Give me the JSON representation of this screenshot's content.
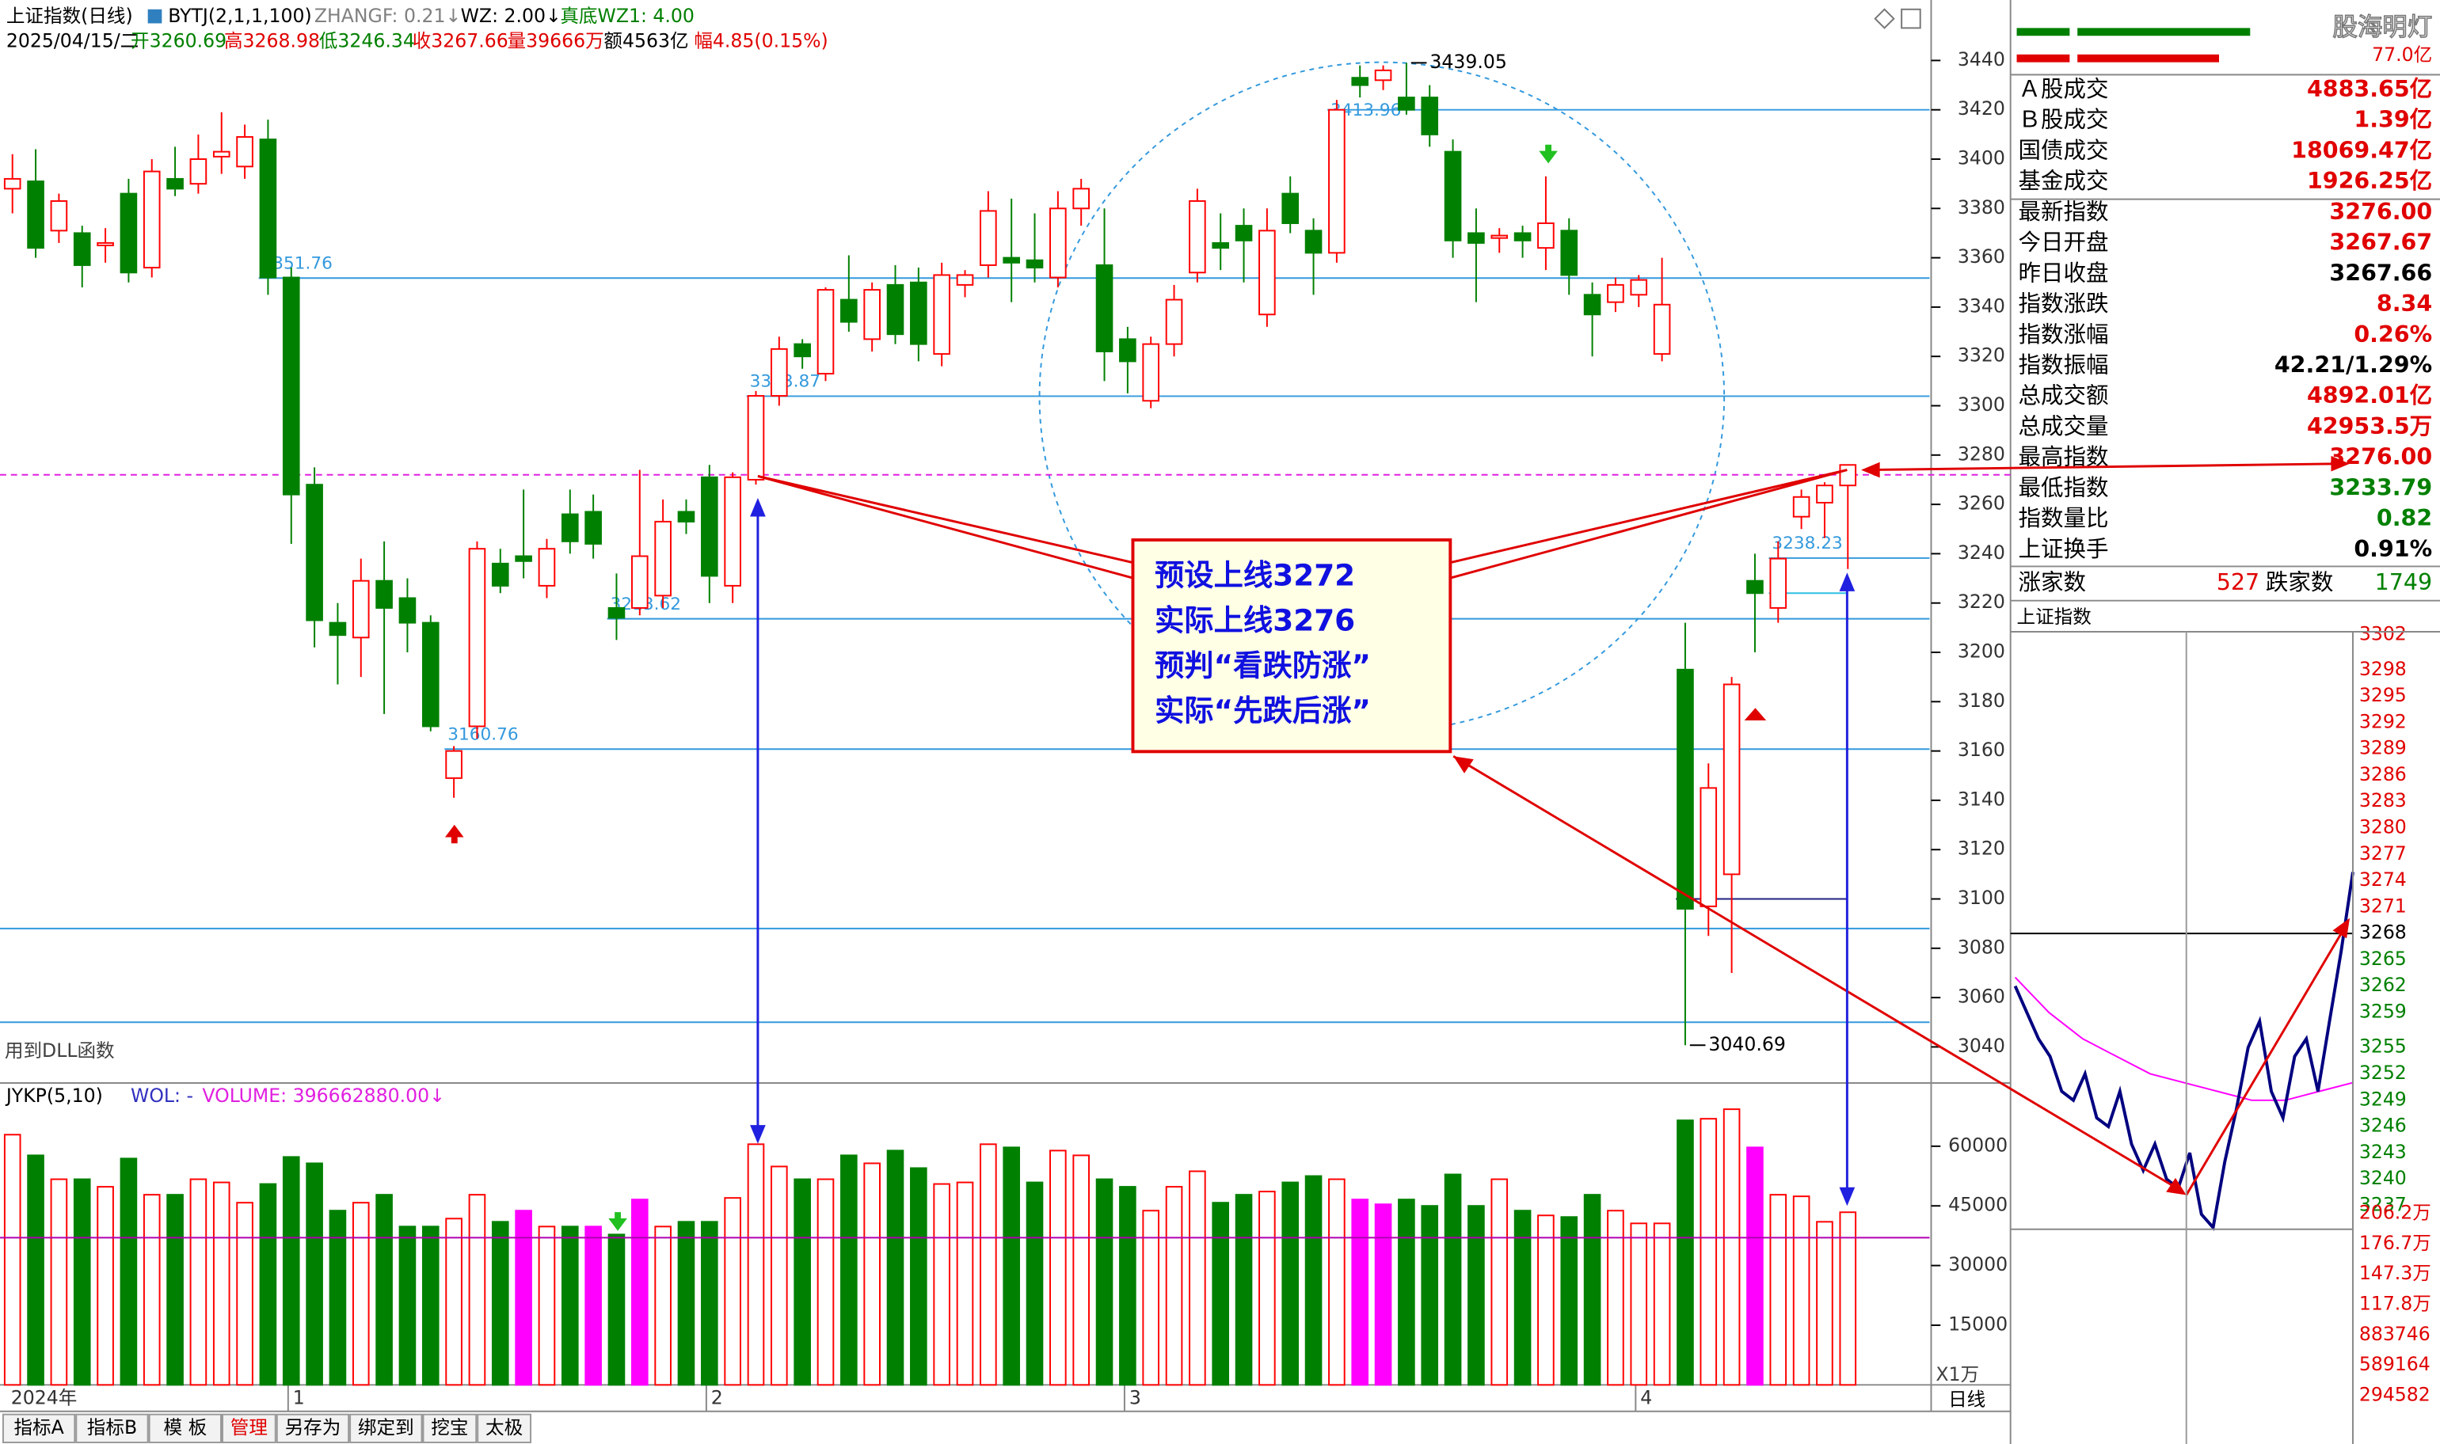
{
  "header": {
    "title": "上证指数(日线)",
    "indicator": "BYTJ(2,1,1,100)",
    "zhangf": "ZHANGF: 0.21↓",
    "wz": "WZ: 2.00↓",
    "wz1": "真底WZ1: 4.00",
    "date": "2025/04/15/二",
    "open": "开3260.69",
    "high": "高3268.98",
    "low": "低3246.34",
    "close": "收3267.66",
    "volume": "量39666万",
    "amount": "额4563亿",
    "range": "幅4.85(0.15%)",
    "note": "用到DLL函数"
  },
  "annotation": [
    "预设上线3272",
    "实际上线3276",
    "预判“看跌防涨”",
    "实际“先跌后涨”"
  ],
  "chart_data": [
    {
      "type": "candlestick",
      "up_color": "#ff0000",
      "down_color": "#008000",
      "ylim": [
        3026,
        3462
      ],
      "yticks": [
        3040,
        3060,
        3080,
        3100,
        3120,
        3140,
        3160,
        3180,
        3200,
        3220,
        3240,
        3260,
        3280,
        3300,
        3320,
        3340,
        3360,
        3380,
        3400,
        3420,
        3440
      ],
      "categories": [
        "2024年",
        null,
        null,
        null,
        null,
        null,
        null,
        null,
        null,
        null,
        null,
        null,
        "1",
        null,
        null,
        null,
        null,
        null,
        null,
        null,
        null,
        null,
        null,
        null,
        null,
        null,
        null,
        null,
        null,
        null,
        "2",
        null,
        null,
        null,
        null,
        null,
        null,
        null,
        null,
        null,
        null,
        null,
        null,
        null,
        null,
        null,
        null,
        null,
        "3",
        null,
        null,
        null,
        null,
        null,
        null,
        null,
        null,
        null,
        null,
        null,
        null,
        null,
        null,
        null,
        null,
        null,
        null,
        null,
        null,
        null,
        "4",
        null,
        null,
        null,
        null,
        null,
        null,
        null,
        null,
        null
      ],
      "values": [
        [
          3388,
          3402,
          3378,
          3392
        ],
        [
          3391,
          3404,
          3360,
          3364
        ],
        [
          3371,
          3386,
          3366,
          3383
        ],
        [
          3370,
          3373,
          3348,
          3357
        ],
        [
          3365,
          3372,
          3358,
          3366
        ],
        [
          3386,
          3392,
          3350,
          3354
        ],
        [
          3356,
          3400,
          3352,
          3395
        ],
        [
          3392,
          3405,
          3385,
          3388
        ],
        [
          3390,
          3410,
          3386,
          3400
        ],
        [
          3401,
          3419,
          3394,
          3403
        ],
        [
          3397,
          3414,
          3392,
          3409
        ],
        [
          3408,
          3416,
          3345,
          3352
        ],
        [
          3352,
          3356,
          3244,
          3264
        ],
        [
          3268,
          3275,
          3202,
          3213
        ],
        [
          3212,
          3220,
          3187,
          3207
        ],
        [
          3206,
          3238,
          3190,
          3229
        ],
        [
          3229,
          3245,
          3175,
          3218
        ],
        [
          3222,
          3230,
          3200,
          3212
        ],
        [
          3212,
          3215,
          3168,
          3170
        ],
        [
          3149,
          3162,
          3141,
          3160
        ],
        [
          3170,
          3245,
          3165,
          3242
        ],
        [
          3236,
          3242,
          3224,
          3227
        ],
        [
          3239,
          3266,
          3230,
          3237
        ],
        [
          3227,
          3246,
          3222,
          3242
        ],
        [
          3256,
          3266,
          3240,
          3245
        ],
        [
          3257,
          3264,
          3238,
          3244
        ],
        [
          3218,
          3232,
          3205,
          3214
        ],
        [
          3218,
          3274,
          3215,
          3239
        ],
        [
          3223,
          3262,
          3218,
          3253
        ],
        [
          3257,
          3262,
          3248,
          3253
        ],
        [
          3271,
          3276,
          3220,
          3231
        ],
        [
          3227,
          3273,
          3220,
          3271
        ],
        [
          3270,
          3306,
          3268,
          3304
        ],
        [
          3304,
          3328,
          3300,
          3323
        ],
        [
          3325,
          3327,
          3315,
          3320
        ],
        [
          3313,
          3348,
          3310,
          3347
        ],
        [
          3343,
          3361,
          3330,
          3334
        ],
        [
          3327,
          3350,
          3322,
          3347
        ],
        [
          3349,
          3357,
          3325,
          3329
        ],
        [
          3350,
          3356,
          3318,
          3325
        ],
        [
          3321,
          3358,
          3316,
          3353
        ],
        [
          3349,
          3355,
          3344,
          3353
        ],
        [
          3357,
          3387,
          3352,
          3379
        ],
        [
          3360,
          3384,
          3342,
          3358
        ],
        [
          3359,
          3378,
          3350,
          3356
        ],
        [
          3352,
          3387,
          3348,
          3380
        ],
        [
          3380,
          3392,
          3373,
          3388
        ],
        [
          3357,
          3380,
          3310,
          3322
        ],
        [
          3327,
          3332,
          3305,
          3318
        ],
        [
          3302,
          3328,
          3299,
          3325
        ],
        [
          3325,
          3349,
          3320,
          3343
        ],
        [
          3354,
          3388,
          3350,
          3383
        ],
        [
          3366,
          3378,
          3355,
          3364
        ],
        [
          3373,
          3380,
          3350,
          3367
        ],
        [
          3337,
          3380,
          3332,
          3371
        ],
        [
          3386,
          3393,
          3370,
          3374
        ],
        [
          3371,
          3376,
          3345,
          3362
        ],
        [
          3362,
          3424,
          3358,
          3420
        ],
        [
          3433,
          3438,
          3425,
          3430
        ],
        [
          3432,
          3438,
          3428,
          3436
        ],
        [
          3425,
          3439.05,
          3418,
          3420
        ],
        [
          3425,
          3430,
          3405,
          3410
        ],
        [
          3403,
          3408,
          3360,
          3367
        ],
        [
          3370,
          3380,
          3342,
          3366
        ],
        [
          3368,
          3372,
          3362,
          3369
        ],
        [
          3370,
          3373,
          3360,
          3367
        ],
        [
          3364,
          3393,
          3355,
          3374
        ],
        [
          3371,
          3376,
          3345,
          3353
        ],
        [
          3345,
          3350,
          3320,
          3337
        ],
        [
          3342,
          3352,
          3338,
          3349
        ],
        [
          3345,
          3353,
          3340,
          3351
        ],
        [
          3321,
          3360,
          3318,
          3341
        ],
        [
          3193,
          3212,
          3040.69,
          3096
        ],
        [
          3097,
          3155,
          3085,
          3145
        ],
        [
          3110,
          3190,
          3070,
          3187
        ],
        [
          3229,
          3240,
          3200,
          3224
        ],
        [
          3218,
          3245,
          3212,
          3238
        ],
        [
          3255,
          3266,
          3250,
          3263
        ],
        [
          3260.69,
          3268.98,
          3246.34,
          3267.66
        ],
        [
          3267.67,
          3276,
          3233.79,
          3276
        ]
      ],
      "levels": [
        {
          "value": 3420,
          "from": 57,
          "color": "#3399dd"
        },
        {
          "value": 3413.96,
          "from": 57,
          "line": false,
          "show_value": true,
          "color": "#3399dd"
        },
        {
          "value": 3351.76,
          "from": 11,
          "show_value": true,
          "color": "#3399dd"
        },
        {
          "value": 3303.87,
          "from": 32,
          "show_value": true,
          "color": "#3399dd"
        },
        {
          "value": 3272,
          "from": 0,
          "dashed": true,
          "color": "#e020e0"
        },
        {
          "value": 3238.23,
          "from": 76,
          "show_value": true,
          "color": "#3399dd"
        },
        {
          "value": 3224,
          "from": 76,
          "to": 79,
          "color": "#30c0e0"
        },
        {
          "value": 3213.62,
          "from": 26,
          "show_value": true,
          "color": "#3399dd"
        },
        {
          "value": 3160.76,
          "from": 19,
          "show_value": true,
          "color": "#3399dd"
        },
        {
          "value": 3100,
          "from": 72,
          "to": 79,
          "color": "#202080"
        },
        {
          "value": 3088,
          "from": 0,
          "color": "#3399dd"
        },
        {
          "value": 3050,
          "from": 0,
          "color": "#3399dd"
        }
      ],
      "high_mark": {
        "index": 60,
        "value": 3439.05
      },
      "low_mark": {
        "index": 72,
        "value": 3040.69
      }
    },
    {
      "type": "bar",
      "title": "JYKP(5,10)",
      "wol": "WOL: -",
      "volume_label": "VOLUME: 396662880.00↓",
      "unit_label": "X1万",
      "ylim": [
        0,
        75500
      ],
      "yticks": [
        15000,
        30000,
        45000,
        60000
      ],
      "values": [
        62900,
        57700,
        51700,
        51700,
        49800,
        56900,
        47800,
        47800,
        51700,
        50900,
        45800,
        50500,
        57300,
        55700,
        43800,
        45800,
        47800,
        39800,
        39800,
        41800,
        47800,
        41000,
        43800,
        39800,
        39800,
        39800,
        37800,
        46600,
        39800,
        41000,
        41000,
        47000,
        60500,
        54900,
        51700,
        51700,
        57700,
        55700,
        58900,
        54500,
        50500,
        50900,
        60500,
        59700,
        50900,
        58900,
        57700,
        51700,
        49800,
        43800,
        49800,
        53700,
        45800,
        47800,
        48600,
        50900,
        52500,
        51700,
        46600,
        45400,
        46600,
        45000,
        52900,
        45000,
        51700,
        43800,
        42600,
        42200,
        47800,
        43800,
        40600,
        40600,
        66500,
        66900,
        69300,
        59700,
        47800,
        47400,
        41000,
        43400
      ],
      "highlight_color": "#ff00ff",
      "highlight": [
        22,
        25,
        27,
        58,
        59,
        75
      ],
      "ref_line": 37000,
      "ref_color": "#b000b0"
    },
    {
      "type": "line",
      "title": "上证指数",
      "color": "#000080",
      "avg_color": "#ff00ff",
      "ylim": [
        3234.3,
        3302.9
      ],
      "yticks": [
        3302,
        3298,
        3295,
        3292,
        3289,
        3286,
        3283,
        3280,
        3277,
        3274,
        3271,
        3268,
        3265,
        3262,
        3259,
        3255,
        3252,
        3249,
        3246,
        3243,
        3240,
        3237
      ],
      "values": [
        3262,
        3259,
        3256,
        3254,
        3250,
        3249,
        3252,
        3247,
        3246,
        3250,
        3244,
        3241,
        3244,
        3240,
        3239,
        3243,
        3236,
        3234.5,
        3242,
        3248,
        3255,
        3258,
        3250,
        3247,
        3254,
        3256,
        3250,
        3258,
        3266,
        3275
      ],
      "avg_values": [
        3263,
        3259,
        3256,
        3254,
        3252,
        3251,
        3250,
        3249,
        3249,
        3250,
        3251
      ],
      "volume_labels": [
        "206.2万",
        "176.7万",
        "147.3万",
        "117.8万",
        "883746",
        "589164",
        "294582"
      ]
    }
  ],
  "panel": {
    "brand": "股海明灯",
    "top_value": "77.0亿",
    "stats": [
      {
        "label": "Ａ股成交",
        "value": "4883.65亿",
        "color": "#e00000"
      },
      {
        "label": "Ｂ股成交",
        "value": "1.39亿",
        "color": "#e00000"
      },
      {
        "label": "国债成交",
        "value": "18069.47亿",
        "color": "#e00000"
      },
      {
        "label": "基金成交",
        "value": "1926.25亿",
        "color": "#e00000"
      },
      {
        "label": "最新指数",
        "value": "3276.00",
        "color": "#e00000"
      },
      {
        "label": "今日开盘",
        "value": "3267.67",
        "color": "#e00000"
      },
      {
        "label": "昨日收盘",
        "value": "3267.66",
        "color": "#000000"
      },
      {
        "label": "指数涨跌",
        "value": "8.34",
        "color": "#e00000"
      },
      {
        "label": "指数涨幅",
        "value": "0.26%",
        "color": "#e00000"
      },
      {
        "label": "指数振幅",
        "value": "42.21/1.29%",
        "color": "#000000"
      },
      {
        "label": "总成交额",
        "value": "4892.01亿",
        "color": "#e00000"
      },
      {
        "label": "总成交量",
        "value": "42953.5万",
        "color": "#e00000"
      },
      {
        "label": "最高指数",
        "value": "3276.00",
        "color": "#e00000"
      },
      {
        "label": "最低指数",
        "value": "3233.79",
        "color": "#008000"
      },
      {
        "label": "指数量比",
        "value": "0.82",
        "color": "#008000"
      },
      {
        "label": "上证换手",
        "value": "0.91%",
        "color": "#000000"
      }
    ],
    "breadth": {
      "up_label": "涨家数",
      "up": "527",
      "down_label": "跌家数",
      "down": "1749"
    }
  },
  "tabs": [
    "指标A",
    "指标B",
    "模 板",
    "管理",
    "另存为",
    "绑定到",
    "挖宝",
    "太极"
  ],
  "period": "日线"
}
